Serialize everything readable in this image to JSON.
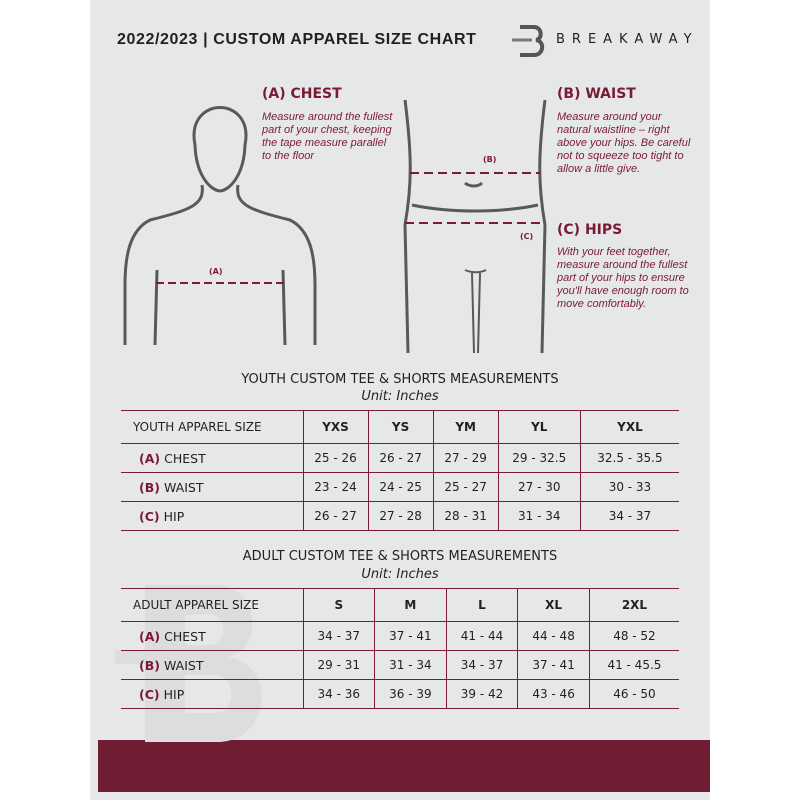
{
  "header": {
    "title": "2022/2023  |  CUSTOM APPAREL SIZE CHART",
    "brand": "BREAKAWAY",
    "logo_letter": "B"
  },
  "chest": {
    "heading": "(A) CHEST",
    "text": "Measure around the fullest part of your chest, keeping the tape measure parallel to the floor",
    "marker": "(A)"
  },
  "waist": {
    "heading": "(B) WAIST",
    "text": "Measure around your natural waistline – right above your hips. Be careful not to squeeze too tight to allow a little give.",
    "marker": "(B)"
  },
  "hips": {
    "heading": "(C) HIPS",
    "text": "With your feet together, measure around the fullest part of your hips to ensure you'll have enough room to move comfortably.",
    "marker": "(C)"
  },
  "youth": {
    "title": "YOUTH CUSTOM TEE & SHORTS MEASUREMENTS",
    "unit": "Unit: Inches",
    "size_label": "YOUTH APPAREL SIZE",
    "sizes": [
      "YXS",
      "YS",
      "YM",
      "YL",
      "YXL"
    ],
    "rows": [
      {
        "code": "(A)",
        "name": "CHEST",
        "values": [
          "25 - 26",
          "26 - 27",
          "27 - 29",
          "29 - 32.5",
          "32.5 - 35.5"
        ]
      },
      {
        "code": "(B)",
        "name": "WAIST",
        "values": [
          "23 - 24",
          "24 - 25",
          "25 - 27",
          "27 - 30",
          "30 - 33"
        ]
      },
      {
        "code": "(C)",
        "name": "HIP",
        "values": [
          "26 - 27",
          "27 - 28",
          "28 - 31",
          "31 - 34",
          "34 - 37"
        ]
      }
    ]
  },
  "adult": {
    "title": "ADULT CUSTOM TEE & SHORTS MEASUREMENTS",
    "unit": "Unit: Inches",
    "size_label": "ADULT APPAREL SIZE",
    "sizes": [
      "S",
      "M",
      "L",
      "XL",
      "2XL"
    ],
    "rows": [
      {
        "code": "(A)",
        "name": "CHEST",
        "values": [
          "34 - 37",
          "37 - 41",
          "41 - 44",
          "44 - 48",
          "48 - 52"
        ]
      },
      {
        "code": "(B)",
        "name": "WAIST",
        "values": [
          "29 - 31",
          "31 - 34",
          "34 - 37",
          "37 - 41",
          "41 - 45.5"
        ]
      },
      {
        "code": "(C)",
        "name": "HIP",
        "values": [
          "34 - 36",
          "36 - 39",
          "39 - 42",
          "43 - 46",
          "46 - 50"
        ]
      }
    ]
  },
  "colors": {
    "accent": "#7a1b33",
    "footer": "#701c32",
    "panel": "#e6e7e9"
  }
}
